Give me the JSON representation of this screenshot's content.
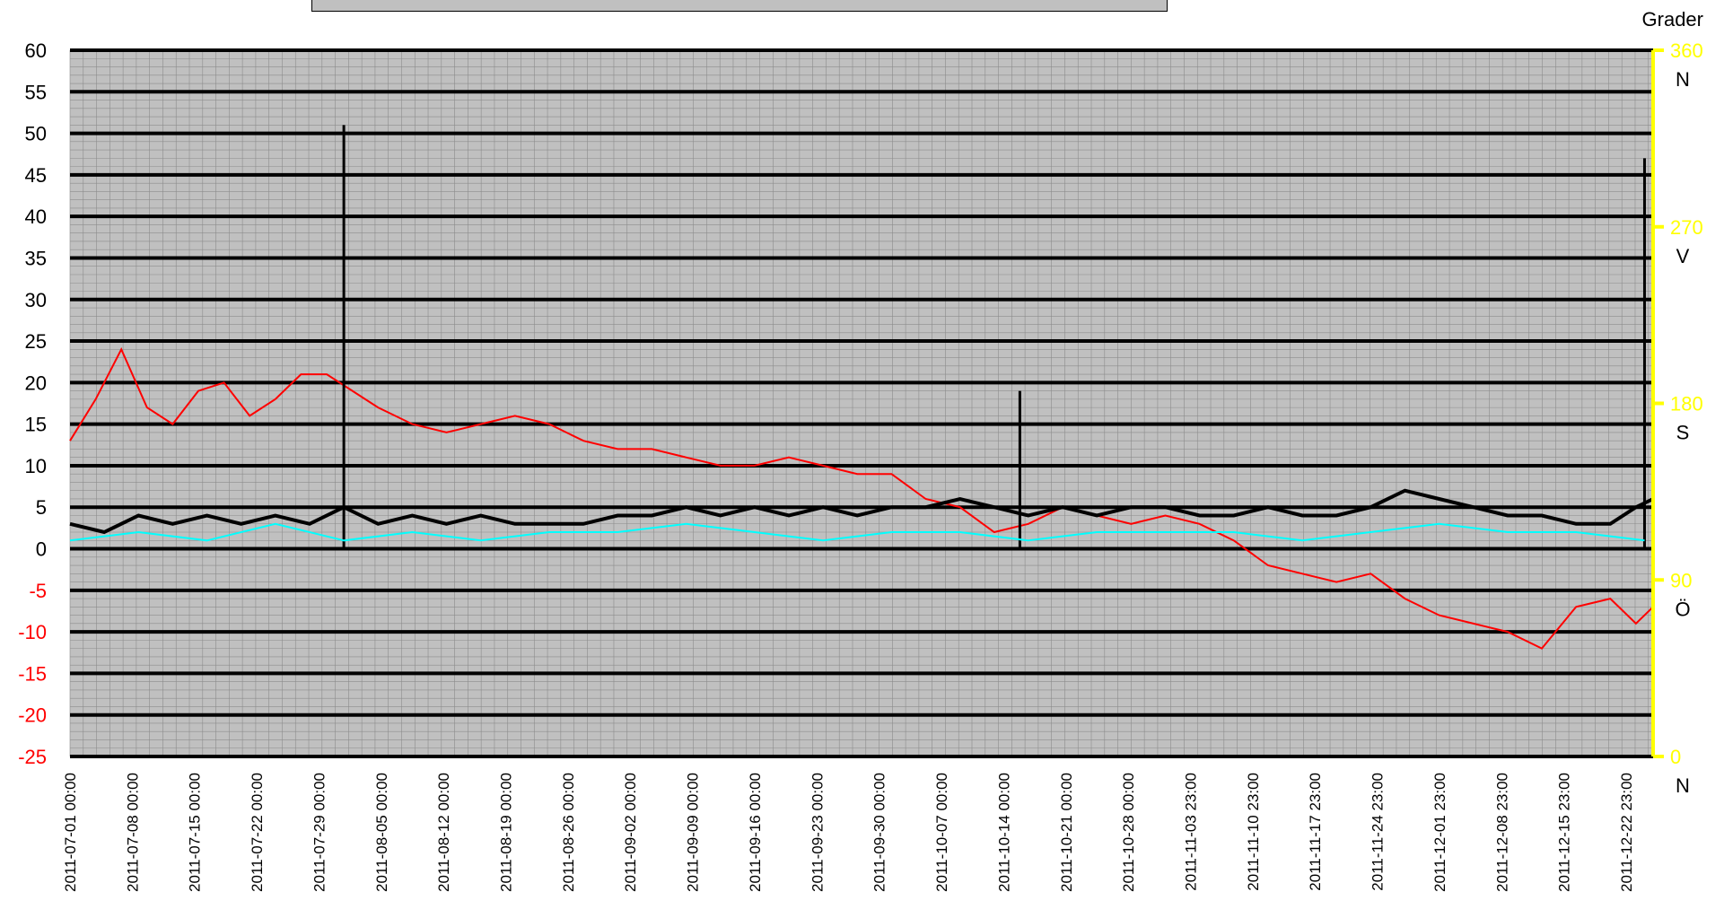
{
  "chart_data": {
    "type": "line",
    "right_axis_title": "Grader",
    "y_left": {
      "range": [
        -25,
        60
      ],
      "ticks": [
        60,
        55,
        50,
        45,
        40,
        35,
        30,
        25,
        20,
        15,
        10,
        5,
        0,
        -5,
        -10,
        -15,
        -20,
        -25
      ]
    },
    "y_right": {
      "range": [
        0,
        360
      ],
      "ticks": [
        {
          "value": 360,
          "label": "360",
          "dir": "N"
        },
        {
          "value": 270,
          "label": "270",
          "dir": "V"
        },
        {
          "value": 180,
          "label": "180",
          "dir": "S"
        },
        {
          "value": 90,
          "label": "90",
          "dir": "Ö"
        },
        {
          "value": 0,
          "label": "0",
          "dir": "N"
        }
      ]
    },
    "x_ticks": [
      "2011-07-01 00:00",
      "2011-07-08 00:00",
      "2011-07-15 00:00",
      "2011-07-22 00:00",
      "2011-07-29 00:00",
      "2011-08-05 00:00",
      "2011-08-12 00:00",
      "2011-08-19 00:00",
      "2011-08-26 00:00",
      "2011-09-02 00:00",
      "2011-09-09 00:00",
      "2011-09-16 00:00",
      "2011-09-23 00:00",
      "2011-09-30 00:00",
      "2011-10-07 00:00",
      "2011-10-14 00:00",
      "2011-10-21 00:00",
      "2011-10-28 00:00",
      "2011-11-03 23:00",
      "2011-11-10 23:00",
      "2011-11-17 23:00",
      "2011-11-24 23:00",
      "2011-12-01 23:00",
      "2011-12-08 23:00",
      "2011-12-15 23:00",
      "2011-12-22 23:00"
    ],
    "x_range_days": [
      0,
      185
    ],
    "grid": true,
    "series": [
      {
        "color": "#ff0000",
        "axis": "left",
        "points": [
          [
            0,
            13
          ],
          [
            3,
            18
          ],
          [
            6,
            24
          ],
          [
            9,
            17
          ],
          [
            12,
            15
          ],
          [
            15,
            19
          ],
          [
            18,
            20
          ],
          [
            21,
            16
          ],
          [
            24,
            18
          ],
          [
            27,
            21
          ],
          [
            30,
            21
          ],
          [
            33,
            19
          ],
          [
            36,
            17
          ],
          [
            40,
            15
          ],
          [
            44,
            14
          ],
          [
            48,
            15
          ],
          [
            52,
            16
          ],
          [
            56,
            15
          ],
          [
            60,
            13
          ],
          [
            64,
            12
          ],
          [
            68,
            12
          ],
          [
            72,
            11
          ],
          [
            76,
            10
          ],
          [
            80,
            10
          ],
          [
            84,
            11
          ],
          [
            88,
            10
          ],
          [
            92,
            9
          ],
          [
            96,
            9
          ],
          [
            100,
            6
          ],
          [
            104,
            5
          ],
          [
            108,
            2
          ],
          [
            112,
            3
          ],
          [
            116,
            5
          ],
          [
            120,
            4
          ],
          [
            124,
            3
          ],
          [
            128,
            4
          ],
          [
            132,
            3
          ],
          [
            136,
            1
          ],
          [
            140,
            -2
          ],
          [
            144,
            -3
          ],
          [
            148,
            -4
          ],
          [
            152,
            -3
          ],
          [
            156,
            -6
          ],
          [
            160,
            -8
          ],
          [
            164,
            -9
          ],
          [
            168,
            -10
          ],
          [
            172,
            -12
          ],
          [
            176,
            -7
          ],
          [
            180,
            -6
          ],
          [
            183,
            -9
          ],
          [
            185,
            -7
          ]
        ]
      },
      {
        "color": "#000000",
        "axis": "left",
        "points": [
          [
            0,
            3
          ],
          [
            4,
            2
          ],
          [
            8,
            4
          ],
          [
            12,
            3
          ],
          [
            16,
            4
          ],
          [
            20,
            3
          ],
          [
            24,
            4
          ],
          [
            28,
            3
          ],
          [
            32,
            5
          ],
          [
            36,
            3
          ],
          [
            40,
            4
          ],
          [
            44,
            3
          ],
          [
            48,
            4
          ],
          [
            52,
            3
          ],
          [
            56,
            3
          ],
          [
            60,
            3
          ],
          [
            64,
            4
          ],
          [
            68,
            4
          ],
          [
            72,
            5
          ],
          [
            76,
            4
          ],
          [
            80,
            5
          ],
          [
            84,
            4
          ],
          [
            88,
            5
          ],
          [
            92,
            4
          ],
          [
            96,
            5
          ],
          [
            100,
            5
          ],
          [
            104,
            6
          ],
          [
            108,
            5
          ],
          [
            112,
            4
          ],
          [
            116,
            5
          ],
          [
            120,
            4
          ],
          [
            124,
            5
          ],
          [
            128,
            5
          ],
          [
            132,
            4
          ],
          [
            136,
            4
          ],
          [
            140,
            5
          ],
          [
            144,
            4
          ],
          [
            148,
            4
          ],
          [
            152,
            5
          ],
          [
            156,
            7
          ],
          [
            160,
            6
          ],
          [
            164,
            5
          ],
          [
            168,
            4
          ],
          [
            172,
            4
          ],
          [
            176,
            3
          ],
          [
            180,
            3
          ],
          [
            183,
            5
          ],
          [
            185,
            6
          ]
        ],
        "spikes": [
          [
            32,
            51
          ],
          [
            111,
            19
          ],
          [
            184,
            47
          ]
        ]
      },
      {
        "color": "#00ffff",
        "axis": "left",
        "points": [
          [
            0,
            1
          ],
          [
            8,
            2
          ],
          [
            16,
            1
          ],
          [
            24,
            3
          ],
          [
            32,
            1
          ],
          [
            40,
            2
          ],
          [
            48,
            1
          ],
          [
            56,
            2
          ],
          [
            64,
            2
          ],
          [
            72,
            3
          ],
          [
            80,
            2
          ],
          [
            88,
            1
          ],
          [
            96,
            2
          ],
          [
            104,
            2
          ],
          [
            112,
            1
          ],
          [
            120,
            2
          ],
          [
            128,
            2
          ],
          [
            136,
            2
          ],
          [
            144,
            1
          ],
          [
            152,
            2
          ],
          [
            160,
            3
          ],
          [
            168,
            2
          ],
          [
            176,
            2
          ],
          [
            184,
            1
          ]
        ]
      }
    ]
  }
}
